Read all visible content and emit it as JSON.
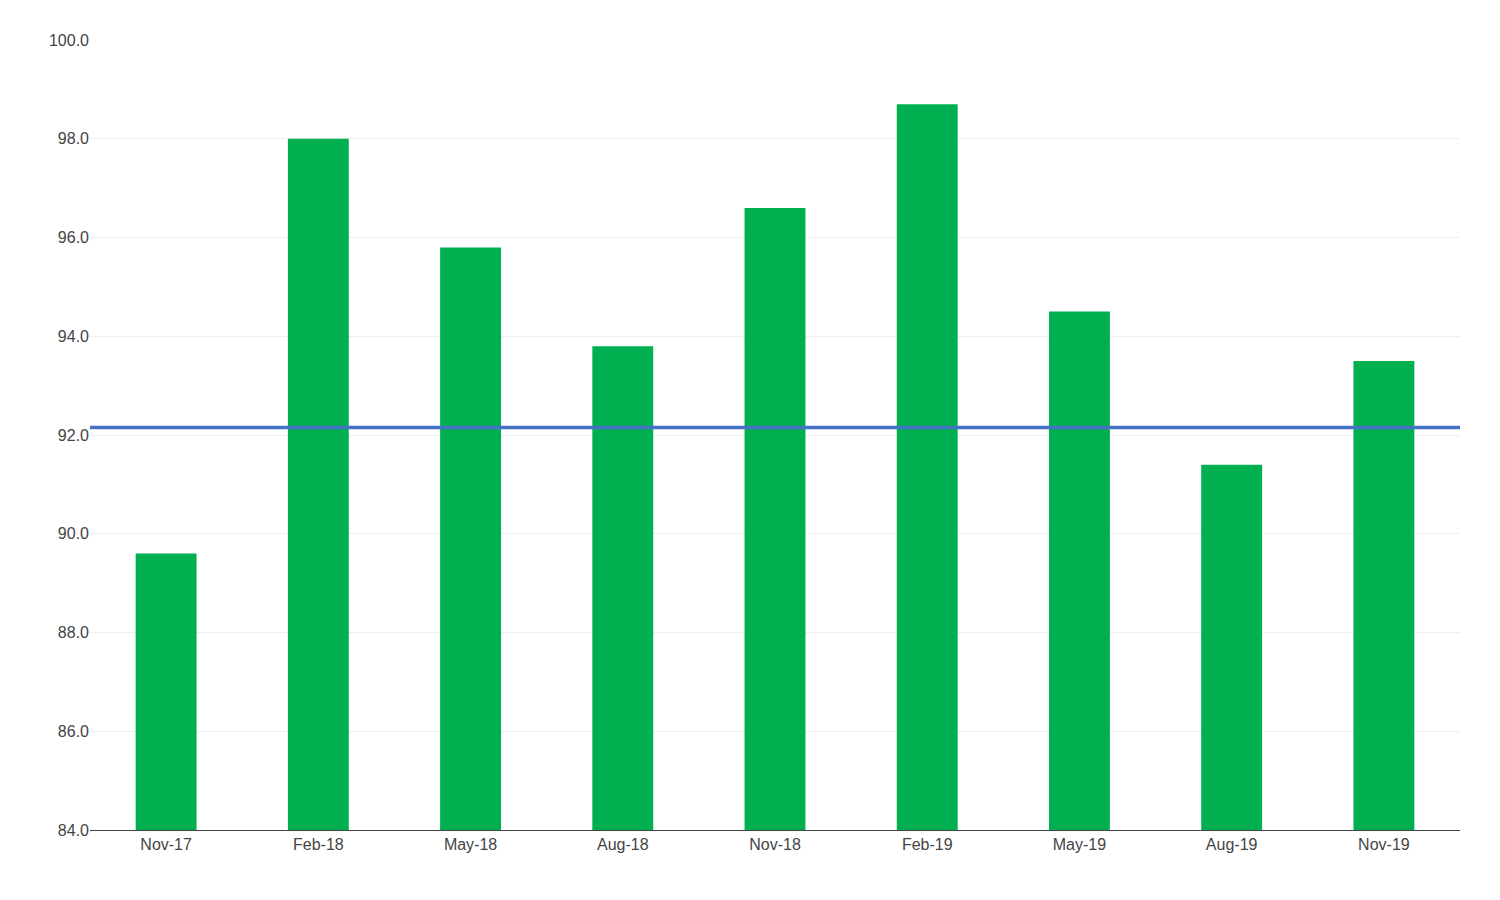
{
  "chart_data": {
    "type": "bar",
    "categories": [
      "Nov-17",
      "Feb-18",
      "May-18",
      "Aug-18",
      "Nov-18",
      "Feb-19",
      "May-19",
      "Aug-19",
      "Nov-19"
    ],
    "values": [
      89.6,
      98.0,
      95.8,
      93.8,
      96.6,
      98.7,
      94.5,
      91.4,
      93.5
    ],
    "color": "#00b050",
    "hlines": [
      {
        "y": 92.15,
        "color": "#4472c4"
      }
    ],
    "ylim": [
      84.0,
      100.0
    ],
    "yticks": [
      {
        "value": 84.0,
        "label": "84.0"
      },
      {
        "value": 86.0,
        "label": "86.0"
      },
      {
        "value": 88.0,
        "label": "88.0"
      },
      {
        "value": 90.0,
        "label": "90.0"
      },
      {
        "value": 92.0,
        "label": "92.0"
      },
      {
        "value": 94.0,
        "label": "94.0"
      },
      {
        "value": 96.0,
        "label": "96.0"
      },
      {
        "value": 98.0,
        "label": "98.0"
      },
      {
        "value": 100.0,
        "label": "100.0"
      }
    ],
    "grid": true
  }
}
